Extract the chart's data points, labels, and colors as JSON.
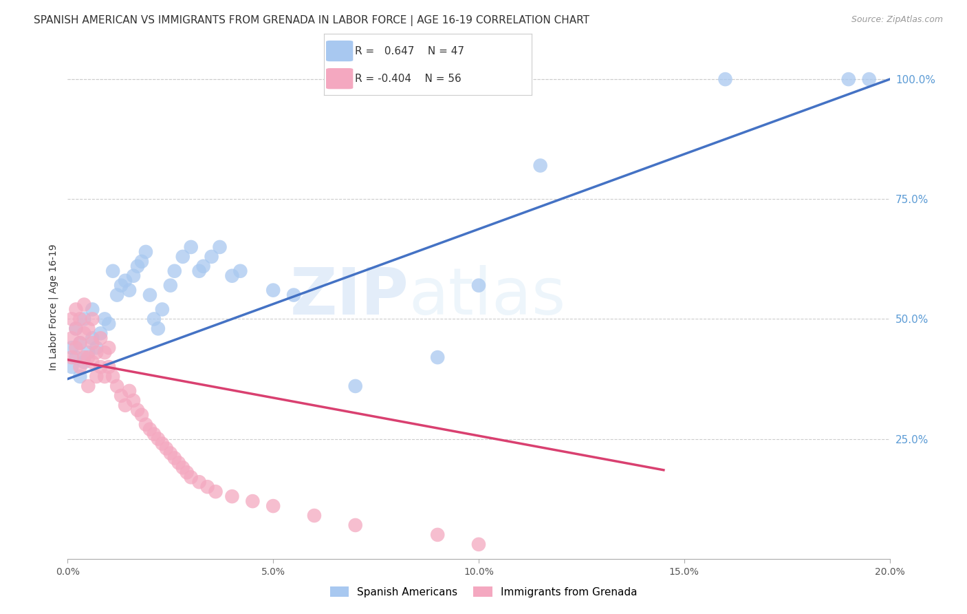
{
  "title": "SPANISH AMERICAN VS IMMIGRANTS FROM GRENADA IN LABOR FORCE | AGE 16-19 CORRELATION CHART",
  "source": "Source: ZipAtlas.com",
  "ylabel": "In Labor Force | Age 16-19",
  "xlabel": "",
  "xlim": [
    0.0,
    0.2
  ],
  "ylim": [
    0.0,
    1.05
  ],
  "xticks": [
    0.0,
    0.05,
    0.1,
    0.15,
    0.2
  ],
  "xticklabels": [
    "0.0%",
    "5.0%",
    "10.0%",
    "15.0%",
    "20.0%"
  ],
  "yticks_right": [
    0.25,
    0.5,
    0.75,
    1.0
  ],
  "yticklabels_right": [
    "25.0%",
    "50.0%",
    "75.0%",
    "100.0%"
  ],
  "blue_color": "#a8c8f0",
  "pink_color": "#f4a8c0",
  "blue_line_color": "#4472c4",
  "pink_line_color": "#d94070",
  "watermark_zip": "ZIP",
  "watermark_atlas": "atlas",
  "title_fontsize": 11,
  "axis_label_fontsize": 10,
  "tick_fontsize": 10,
  "right_tick_color": "#5b9bd5",
  "background_color": "#ffffff",
  "grid_color": "#cccccc",
  "blue_trend_x": [
    0.0,
    0.2
  ],
  "blue_trend_y": [
    0.375,
    1.0
  ],
  "pink_trend_x": [
    0.0,
    0.145
  ],
  "pink_trend_y": [
    0.415,
    0.185
  ],
  "blue_scatter_x": [
    0.001,
    0.001,
    0.002,
    0.002,
    0.003,
    0.003,
    0.004,
    0.004,
    0.005,
    0.006,
    0.006,
    0.007,
    0.008,
    0.009,
    0.01,
    0.011,
    0.012,
    0.013,
    0.014,
    0.015,
    0.016,
    0.017,
    0.018,
    0.019,
    0.02,
    0.021,
    0.022,
    0.023,
    0.025,
    0.026,
    0.028,
    0.03,
    0.032,
    0.033,
    0.035,
    0.037,
    0.04,
    0.042,
    0.05,
    0.055,
    0.07,
    0.09,
    0.1,
    0.115,
    0.16,
    0.19,
    0.195
  ],
  "blue_scatter_y": [
    0.4,
    0.44,
    0.42,
    0.48,
    0.38,
    0.45,
    0.41,
    0.5,
    0.43,
    0.46,
    0.52,
    0.44,
    0.47,
    0.5,
    0.49,
    0.6,
    0.55,
    0.57,
    0.58,
    0.56,
    0.59,
    0.61,
    0.62,
    0.64,
    0.55,
    0.5,
    0.48,
    0.52,
    0.57,
    0.6,
    0.63,
    0.65,
    0.6,
    0.61,
    0.63,
    0.65,
    0.59,
    0.6,
    0.56,
    0.55,
    0.36,
    0.42,
    0.57,
    0.82,
    1.0,
    1.0,
    1.0
  ],
  "pink_scatter_x": [
    0.001,
    0.001,
    0.001,
    0.002,
    0.002,
    0.002,
    0.003,
    0.003,
    0.003,
    0.004,
    0.004,
    0.004,
    0.005,
    0.005,
    0.005,
    0.006,
    0.006,
    0.006,
    0.007,
    0.007,
    0.008,
    0.008,
    0.009,
    0.009,
    0.01,
    0.01,
    0.011,
    0.012,
    0.013,
    0.014,
    0.015,
    0.016,
    0.017,
    0.018,
    0.019,
    0.02,
    0.021,
    0.022,
    0.023,
    0.024,
    0.025,
    0.026,
    0.027,
    0.028,
    0.029,
    0.03,
    0.032,
    0.034,
    0.036,
    0.04,
    0.045,
    0.05,
    0.06,
    0.07,
    0.09,
    0.1
  ],
  "pink_scatter_y": [
    0.42,
    0.46,
    0.5,
    0.44,
    0.48,
    0.52,
    0.4,
    0.45,
    0.5,
    0.42,
    0.47,
    0.53,
    0.42,
    0.48,
    0.36,
    0.41,
    0.45,
    0.5,
    0.38,
    0.43,
    0.4,
    0.46,
    0.38,
    0.43,
    0.4,
    0.44,
    0.38,
    0.36,
    0.34,
    0.32,
    0.35,
    0.33,
    0.31,
    0.3,
    0.28,
    0.27,
    0.26,
    0.25,
    0.24,
    0.23,
    0.22,
    0.21,
    0.2,
    0.19,
    0.18,
    0.17,
    0.16,
    0.15,
    0.14,
    0.13,
    0.12,
    0.11,
    0.09,
    0.07,
    0.05,
    0.03
  ]
}
